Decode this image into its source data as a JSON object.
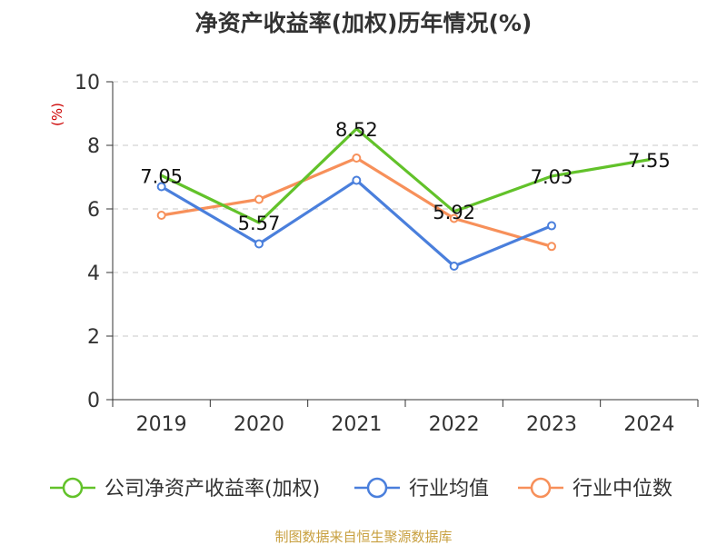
{
  "chart_data": {
    "type": "line",
    "title": "净资产收益率(加权)历年情况(%)",
    "ylabel": "(%)",
    "xlabel": "",
    "categories": [
      "2019",
      "2020",
      "2021",
      "2022",
      "2023",
      "2024"
    ],
    "ylim": [
      0,
      10
    ],
    "yticks": [
      0,
      2,
      4,
      6,
      8,
      10
    ],
    "grid": true,
    "legend_position": "bottom",
    "series": [
      {
        "name": "公司净资产收益率(加权)",
        "color": "#62c22a",
        "values": [
          7.05,
          5.57,
          8.52,
          5.92,
          7.03,
          7.55
        ],
        "labels": [
          "7.05",
          "5.57",
          "8.52",
          "5.92",
          "7.03",
          "7.55"
        ],
        "markers": false
      },
      {
        "name": "行业均值",
        "color": "#4a7fdc",
        "values": [
          6.7,
          4.9,
          6.9,
          4.2,
          5.47,
          null
        ],
        "markers": true
      },
      {
        "name": "行业中位数",
        "color": "#f7905a",
        "values": [
          5.8,
          6.3,
          7.6,
          5.7,
          4.82,
          null
        ],
        "markers": true
      }
    ]
  },
  "source_text": "制图数据来自恒生聚源数据库"
}
